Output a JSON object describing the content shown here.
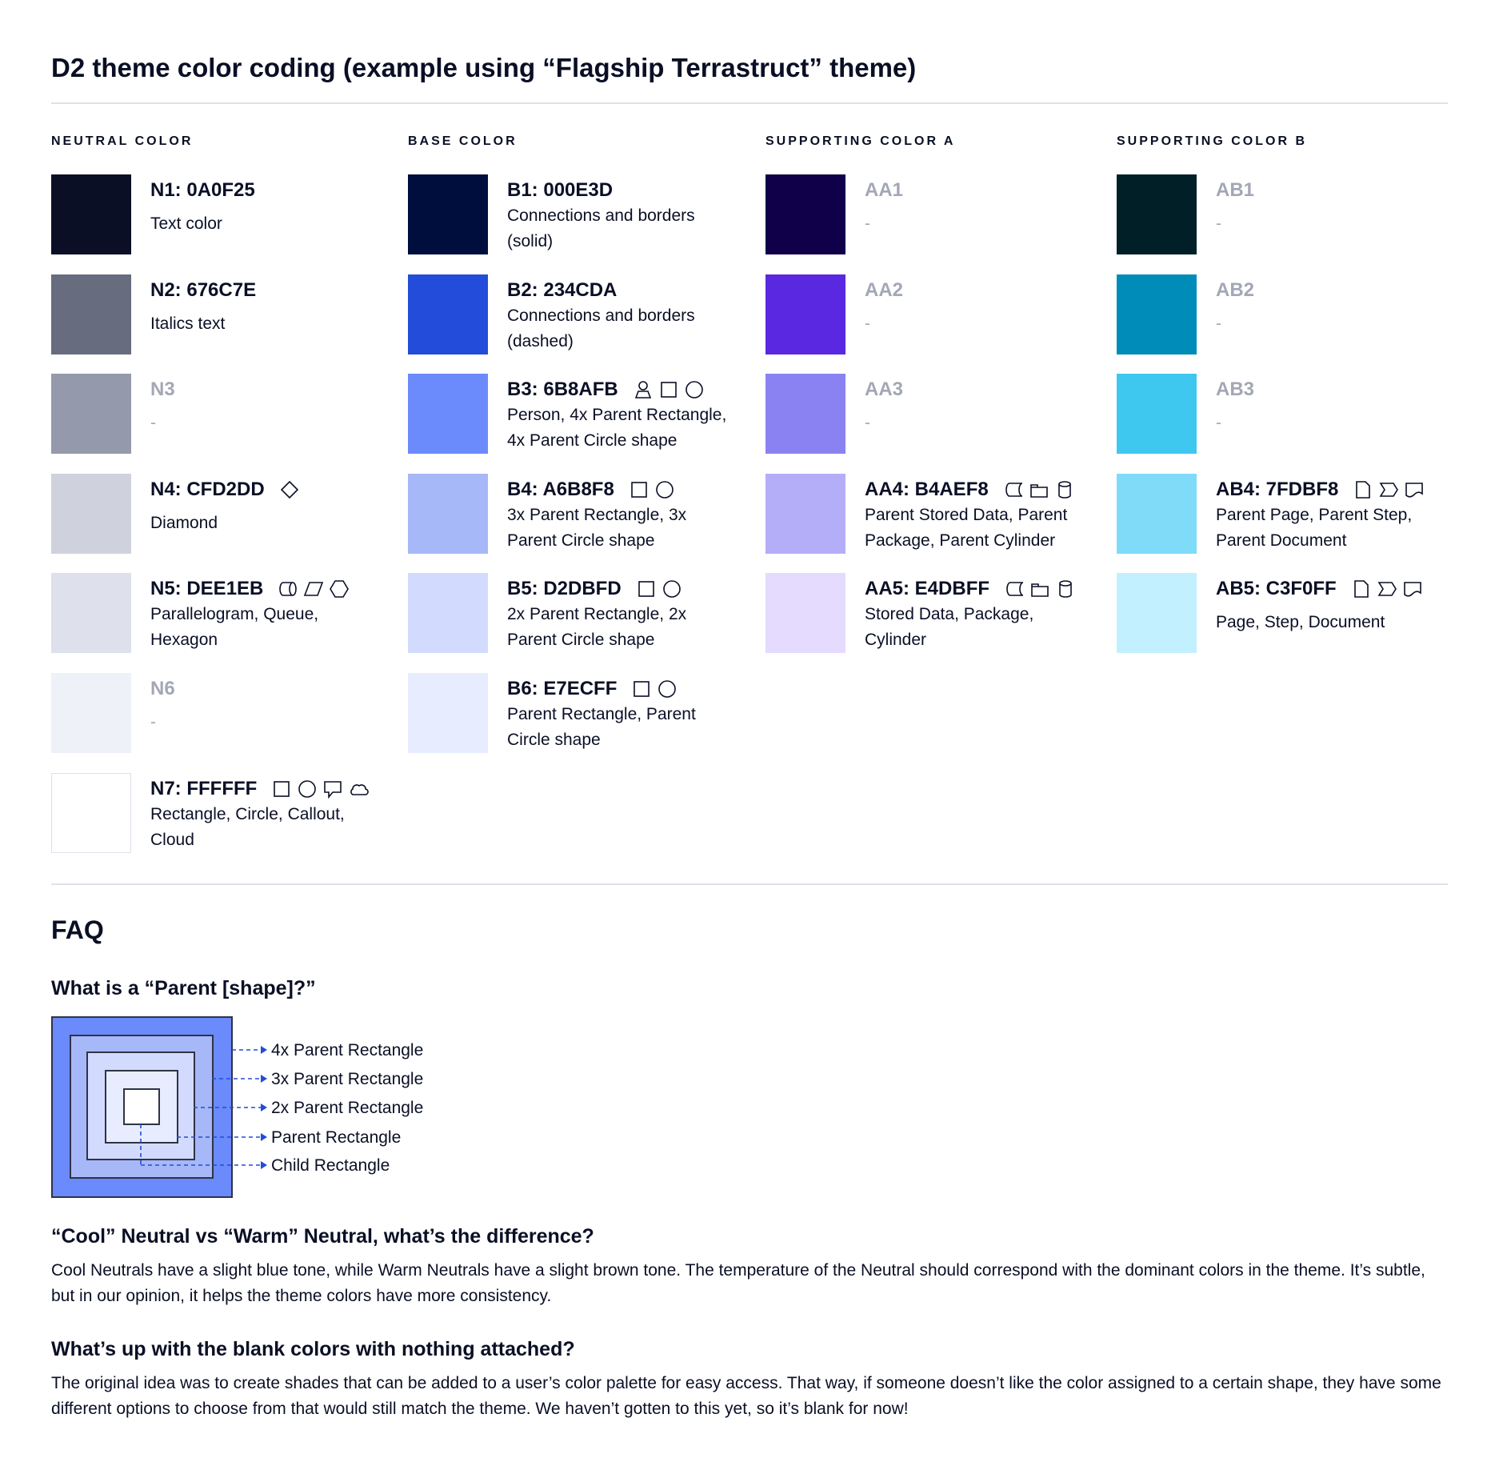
{
  "title": "D2 theme color coding (example using “Flagship Terrastruct” theme)",
  "columns": [
    {
      "heading": "NEUTRAL COLOR",
      "items": [
        {
          "code": "N1: 0A0F25",
          "hex": "#0A0F25",
          "desc": "Text color",
          "icons": []
        },
        {
          "code": "N2: 676C7E",
          "hex": "#676C7E",
          "desc": "Italics text",
          "icons": []
        },
        {
          "code": "N3",
          "hex": "#9499AB",
          "desc": "-",
          "icons": [],
          "muted": true
        },
        {
          "code": "N4: CFD2DD",
          "hex": "#CFD2DD",
          "desc": "Diamond",
          "icons": [
            "diamond"
          ]
        },
        {
          "code": "N5: DEE1EB",
          "hex": "#DEE1EB",
          "desc": "Parallelogram, Queue,\nHexagon",
          "icons": [
            "queue",
            "parallelogram",
            "hexagon"
          ]
        },
        {
          "code": "N6",
          "hex": "#EEF1F8",
          "desc": "-",
          "icons": [],
          "muted": true
        },
        {
          "code": "N7: FFFFFF",
          "hex": "#FFFFFF",
          "desc": "Rectangle, Circle, Callout,\nCloud",
          "icons": [
            "rectangle",
            "circle",
            "callout",
            "cloud"
          ]
        }
      ]
    },
    {
      "heading": "BASE COLOR",
      "items": [
        {
          "code": "B1: 000E3D",
          "hex": "#000E3D",
          "desc": "Connections and borders\n(solid)",
          "icons": []
        },
        {
          "code": "B2: 234CDA",
          "hex": "#234CDA",
          "desc": "Connections and borders\n(dashed)",
          "icons": []
        },
        {
          "code": "B3: 6B8AFB",
          "hex": "#6B8AFB",
          "desc": "Person, 4x Parent Rectangle,\n4x Parent Circle shape",
          "icons": [
            "person",
            "rectangle",
            "circle"
          ]
        },
        {
          "code": "B4: A6B8F8",
          "hex": "#A6B8F8",
          "desc": "3x Parent Rectangle, 3x\nParent Circle shape",
          "icons": [
            "rectangle",
            "circle"
          ]
        },
        {
          "code": "B5: D2DBFD",
          "hex": "#D2DBFD",
          "desc": "2x Parent Rectangle, 2x\nParent Circle shape",
          "icons": [
            "rectangle",
            "circle"
          ]
        },
        {
          "code": "B6: E7ECFF",
          "hex": "#E7ECFF",
          "desc": "Parent Rectangle, Parent\nCircle shape",
          "icons": [
            "rectangle",
            "circle"
          ]
        }
      ]
    },
    {
      "heading": "SUPPORTING COLOR A",
      "items": [
        {
          "code": "AA1",
          "hex": "#0F0049",
          "desc": "-",
          "icons": [],
          "muted": true
        },
        {
          "code": "AA2",
          "hex": "#5A28E0",
          "desc": "-",
          "icons": [],
          "muted": true
        },
        {
          "code": "AA3",
          "hex": "#8A82F2",
          "desc": "-",
          "icons": [],
          "muted": true
        },
        {
          "code": "AA4: B4AEF8",
          "hex": "#B4AEF8",
          "desc": "Parent Stored Data, Parent\nPackage,  Parent Cylinder",
          "icons": [
            "stored-data",
            "package",
            "cylinder"
          ]
        },
        {
          "code": "AA5: E4DBFF",
          "hex": "#E4DBFF",
          "desc": "Stored Data, Package,\nCylinder",
          "icons": [
            "stored-data",
            "package",
            "cylinder"
          ]
        }
      ]
    },
    {
      "heading": "SUPPORTING COLOR B",
      "items": [
        {
          "code": "AB1",
          "hex": "#011F26",
          "desc": "-",
          "icons": [],
          "muted": true
        },
        {
          "code": "AB2",
          "hex": "#008CB8",
          "desc": "-",
          "icons": [],
          "muted": true
        },
        {
          "code": "AB3",
          "hex": "#3EC8F0",
          "desc": "-",
          "icons": [],
          "muted": true
        },
        {
          "code": "AB4: 7FDBF8",
          "hex": "#7FDBF8",
          "desc": "Parent Page, Parent Step,\nParent Document",
          "icons": [
            "page",
            "step",
            "document"
          ]
        },
        {
          "code": "AB5: C3F0FF",
          "hex": "#C3F0FF",
          "desc": "Page, Step, Document",
          "icons": [
            "page",
            "step",
            "document"
          ],
          "single": true
        }
      ]
    }
  ],
  "faq": {
    "heading": "FAQ",
    "q1": "What is a “Parent [shape]?”",
    "diagram_labels": [
      "4x Parent Rectangle",
      "3x Parent Rectangle",
      "2x Parent Rectangle",
      "Parent Rectangle",
      "Child Rectangle"
    ],
    "diagram_colors": [
      "#6B8AFB",
      "#A6B8F8",
      "#D2DBFD",
      "#E7ECFF",
      "#FFFFFF"
    ],
    "q2": "“Cool” Neutral vs “Warm” Neutral, what’s the difference?",
    "a2": "Cool Neutrals have a slight blue tone, while Warm Neutrals have a slight brown tone. The temperature of the Neutral should correspond with the dominant colors in the theme. It’s subtle, but in our opinion, it helps the theme colors have more consistency.",
    "q3": "What’s up with the blank colors with nothing attached?",
    "a3": "The original idea was to create shades that can be added to a user’s color palette for easy access. That way, if someone doesn’t like the color assigned to a certain shape, they have some different options to choose from that would still match the theme. We haven’t gotten to this yet, so it’s blank for now!"
  },
  "accent": "#234CDA"
}
